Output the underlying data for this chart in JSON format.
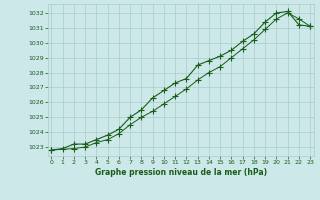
{
  "title": "Graphe pression niveau de la mer (hPa)",
  "background_color": "#cce8e8",
  "grid_color": "#aacccc",
  "line_color": "#1a5c1a",
  "xlim": [
    -0.3,
    23.3
  ],
  "ylim": [
    1022.4,
    1032.6
  ],
  "yticks": [
    1023,
    1024,
    1025,
    1026,
    1027,
    1028,
    1029,
    1030,
    1031,
    1032
  ],
  "xticks": [
    0,
    1,
    2,
    3,
    4,
    5,
    6,
    7,
    8,
    9,
    10,
    11,
    12,
    13,
    14,
    15,
    16,
    17,
    18,
    19,
    20,
    21,
    22,
    23
  ],
  "series1_x": [
    0,
    1,
    2,
    3,
    4,
    5,
    6,
    7,
    8,
    9,
    10,
    11,
    12,
    13,
    14,
    15,
    16,
    17,
    18,
    19,
    20,
    21,
    22,
    23
  ],
  "series1_y": [
    1022.8,
    1022.9,
    1023.2,
    1023.2,
    1023.5,
    1023.8,
    1024.2,
    1025.0,
    1025.5,
    1026.3,
    1026.8,
    1027.3,
    1027.6,
    1028.5,
    1028.8,
    1029.1,
    1029.5,
    1030.1,
    1030.6,
    1031.4,
    1032.0,
    1032.1,
    1031.2,
    1031.1
  ],
  "series2_x": [
    0,
    2,
    3,
    4,
    5,
    6,
    7,
    8,
    9,
    10,
    11,
    12,
    13,
    14,
    15,
    16,
    17,
    18,
    19,
    20,
    21,
    22,
    23
  ],
  "series2_y": [
    1022.8,
    1022.9,
    1023.0,
    1023.3,
    1023.5,
    1023.9,
    1024.5,
    1025.0,
    1025.4,
    1025.9,
    1026.4,
    1026.9,
    1027.5,
    1028.0,
    1028.4,
    1029.0,
    1029.6,
    1030.2,
    1030.9,
    1031.6,
    1032.0,
    1031.6,
    1031.1
  ],
  "figsize": [
    3.2,
    2.0
  ],
  "dpi": 100
}
